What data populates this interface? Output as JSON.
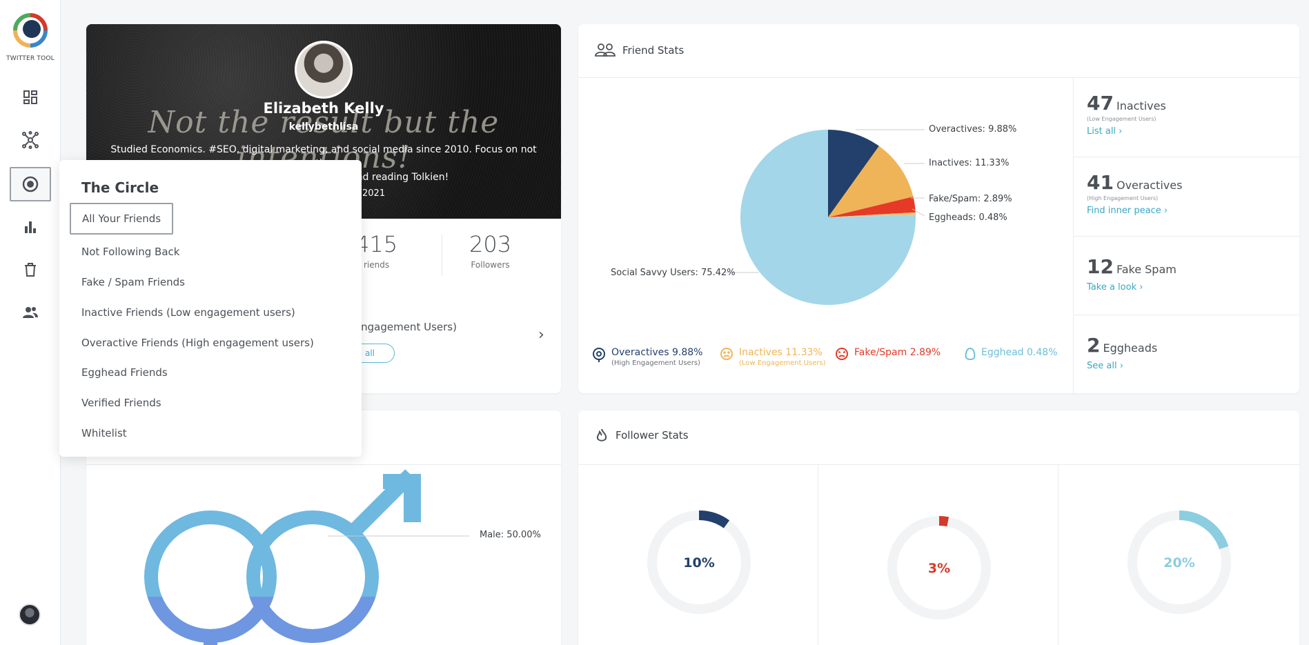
{
  "app": {
    "logo_text": "TWITTER TOOL"
  },
  "sidebar": {
    "items": [
      {
        "name": "dashboard",
        "icon": "dashboard-icon"
      },
      {
        "name": "network",
        "icon": "network-icon"
      },
      {
        "name": "the-circle",
        "icon": "target-icon",
        "active": true
      },
      {
        "name": "stats",
        "icon": "bar-chart-icon"
      },
      {
        "name": "trash",
        "icon": "trash-icon"
      },
      {
        "name": "users",
        "icon": "users-icon"
      }
    ]
  },
  "profile": {
    "name": "Elizabeth Kelly",
    "handle": "kellybethlisa",
    "banner_quote": "Not the result but the intentions!",
    "bio": "Studied Economics. #SEO, digital marketing, and social media since 2010. Focus on not the",
    "bio_line2": "...ema, and reading Tolkien!",
    "joined": "2021",
    "friends_count": "415",
    "friends_label": "riends",
    "followers_count": "203",
    "followers_label": "Followers",
    "engagement_text": "y Engagement Users)",
    "see_all_pill": "all"
  },
  "dropdown": {
    "title": "The Circle",
    "items": [
      "All Your Friends",
      "Not Following Back",
      "Fake / Spam Friends",
      "Inactive Friends (Low engagement users)",
      "Overactive Friends (High engagement users)",
      "Egghead Friends",
      "Verified Friends",
      "Whitelist"
    ],
    "selected": "All Your Friends"
  },
  "gender": {
    "male_label": "Male: 50.00%"
  },
  "friend_stats": {
    "title": "Friend Stats",
    "pie_labels": {
      "overactives": "Overactives: 9.88%",
      "inactives": "Inactives: 11.33%",
      "fake_spam": "Fake/Spam: 2.89%",
      "eggheads": "Eggheads: 0.48%",
      "social_savvy": "Social Savvy Users: 75.42%"
    },
    "legend": {
      "overactives": "Overactives 9.88%",
      "overactives_sub": "(High Engagement Users)",
      "inactives": "Inactives 11.33%",
      "inactives_sub": "(Low Engagement Users)",
      "fake_spam": "Fake/Spam 2.89%",
      "egghead": "Egghead 0.48%"
    },
    "side": [
      {
        "num": "47",
        "name": "Inactives",
        "sub": "(Low Engagement Users)",
        "link": "List all ›"
      },
      {
        "num": "41",
        "name": "Overactives",
        "sub": "(High Engagement Users)",
        "link": "Find inner peace ›"
      },
      {
        "num": "12",
        "name": "Fake Spam",
        "sub": "",
        "link": "Take a look ›"
      },
      {
        "num": "2",
        "name": "Eggheads",
        "sub": "",
        "link": "See all ›"
      }
    ]
  },
  "follower_stats": {
    "title": "Follower Stats",
    "donuts": [
      {
        "pct": "10%",
        "color": "#22406b",
        "value": 0.1
      },
      {
        "pct": "3%",
        "color": "#d43a2a",
        "value": 0.03
      },
      {
        "pct": "20%",
        "color": "#8ccde0",
        "value": 0.2
      }
    ]
  },
  "chart_data": {
    "type": "pie",
    "categories": [
      "Overactives",
      "Inactives",
      "Fake/Spam",
      "Eggheads",
      "Social Savvy Users"
    ],
    "values": [
      9.88,
      11.33,
      2.89,
      0.48,
      75.42
    ],
    "colors": [
      "#22406b",
      "#efb457",
      "#e43a27",
      "#f0c47a",
      "#a3d6e8"
    ],
    "title": "Friend Stats"
  },
  "colors": {
    "accent": "#3aa6c4",
    "overactives": "#22406b",
    "inactives": "#efb457",
    "fake_spam": "#e43a27",
    "egghead": "#6cc0d8"
  }
}
